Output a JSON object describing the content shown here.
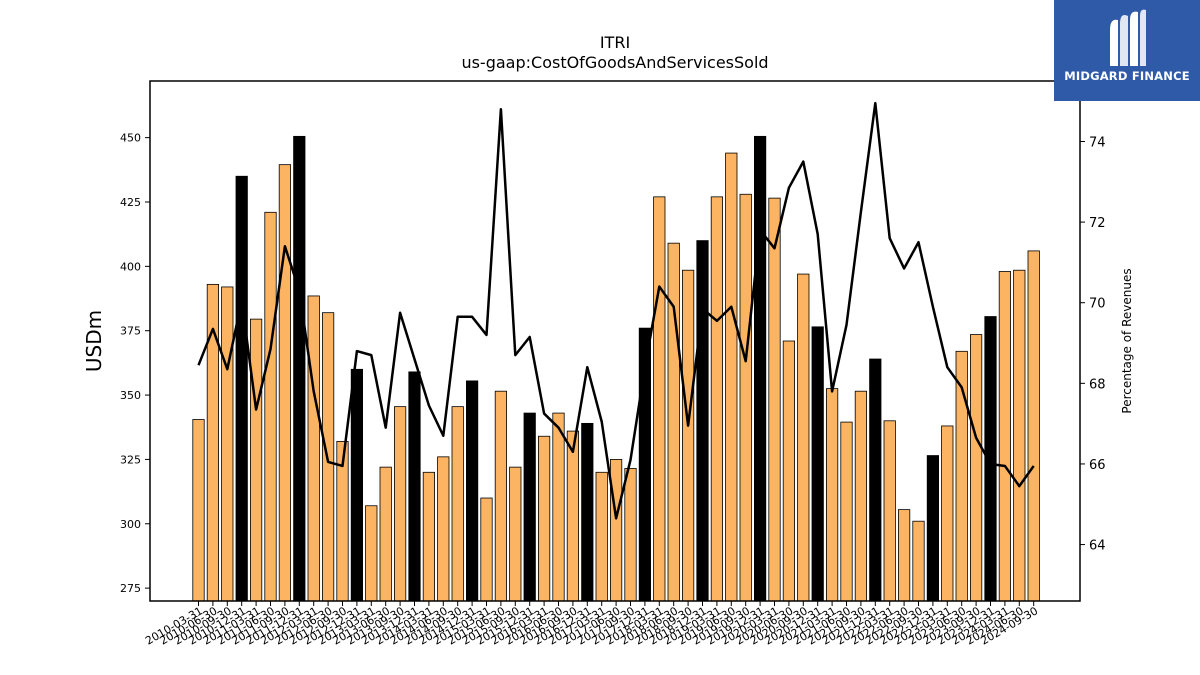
{
  "brand": {
    "name": "MIDGARD FINANCE",
    "logo_icon": "midgard-logo-icon"
  },
  "chart_data": {
    "type": "bar",
    "title": "ITRI",
    "subtitle": "us-gaap:CostOfGoodsAndServicesSold",
    "ylabel": "USDm",
    "y2label": "Percentage of Revenues",
    "ylim": [
      270,
      472
    ],
    "y2lim": [
      62.6,
      75.5
    ],
    "yticks": [
      275,
      300,
      325,
      350,
      375,
      400,
      425,
      450
    ],
    "y2ticks": [
      64,
      66,
      68,
      70,
      72,
      74
    ],
    "colors": {
      "bar": "#fdb462",
      "q4_bar": "#000000",
      "line": "#000000"
    },
    "categories": [
      "2010-03-31",
      "2010-06-30",
      "2010-09-30",
      "2010-12-31",
      "2011-03-31",
      "2011-06-30",
      "2011-09-30",
      "2011-12-31",
      "2012-03-31",
      "2012-06-30",
      "2012-09-30",
      "2012-12-31",
      "2013-03-31",
      "2013-06-30",
      "2013-09-30",
      "2013-12-31",
      "2014-03-31",
      "2014-06-30",
      "2014-09-30",
      "2014-12-31",
      "2015-03-31",
      "2015-06-30",
      "2015-09-30",
      "2015-12-31",
      "2016-03-31",
      "2016-06-30",
      "2016-09-30",
      "2016-12-31",
      "2017-03-31",
      "2017-06-30",
      "2017-09-30",
      "2017-12-31",
      "2018-03-31",
      "2018-06-30",
      "2018-09-30",
      "2018-12-31",
      "2019-03-31",
      "2019-06-30",
      "2019-09-30",
      "2019-12-31",
      "2020-03-31",
      "2020-06-30",
      "2020-09-30",
      "2020-12-31",
      "2021-03-31",
      "2021-06-30",
      "2021-09-30",
      "2021-12-31",
      "2022-03-31",
      "2022-06-30",
      "2022-09-30",
      "2022-12-31",
      "2023-03-31",
      "2023-06-30",
      "2023-09-30",
      "2023-12-31",
      "2024-03-31",
      "2024-06-30",
      "2024-09-30"
    ],
    "series": [
      {
        "kind": "bar",
        "values": [
          340.5,
          393,
          392,
          435,
          379.5,
          421,
          439.5,
          450.5,
          388.5,
          382,
          332,
          360,
          307,
          322,
          345.5,
          359,
          320,
          326,
          345.5,
          355.5,
          310,
          351.5,
          322,
          343,
          334,
          343,
          336,
          339,
          320,
          325,
          321.5,
          376,
          427,
          409,
          398.5,
          410,
          427,
          444,
          428,
          450.5,
          426.5,
          371,
          397,
          376.5,
          352.5,
          339.5,
          351.5,
          364,
          340,
          305.5,
          301,
          326.5,
          338,
          367,
          373.5,
          380.5,
          398,
          398.5,
          406
        ],
        "highlight": [
          false,
          false,
          false,
          true,
          false,
          false,
          false,
          true,
          false,
          false,
          false,
          true,
          false,
          false,
          false,
          true,
          false,
          false,
          false,
          true,
          false,
          false,
          false,
          true,
          false,
          false,
          false,
          true,
          false,
          false,
          false,
          true,
          false,
          false,
          false,
          true,
          false,
          false,
          false,
          true,
          false,
          false,
          false,
          true,
          false,
          false,
          false,
          true,
          false,
          false,
          false,
          true,
          false,
          false,
          false,
          true,
          false,
          false,
          false
        ]
      },
      {
        "kind": "line",
        "axis": "right",
        "values": [
          68.45,
          69.35,
          68.35,
          70.05,
          67.35,
          68.85,
          71.4,
          70.3,
          67.8,
          66.05,
          65.95,
          68.8,
          68.7,
          66.9,
          69.75,
          68.6,
          67.45,
          66.7,
          69.65,
          69.65,
          69.2,
          74.8,
          68.7,
          69.15,
          67.25,
          66.9,
          66.3,
          68.4,
          67.05,
          64.65,
          66.1,
          68.4,
          70.4,
          69.9,
          66.95,
          69.85,
          69.55,
          69.9,
          68.55,
          71.8,
          71.35,
          72.85,
          73.5,
          71.7,
          67.8,
          69.45,
          72.25,
          74.95,
          71.6,
          70.85,
          71.5,
          69.9,
          68.4,
          67.9,
          66.65,
          66,
          65.95,
          65.45,
          65.95
        ]
      }
    ]
  }
}
